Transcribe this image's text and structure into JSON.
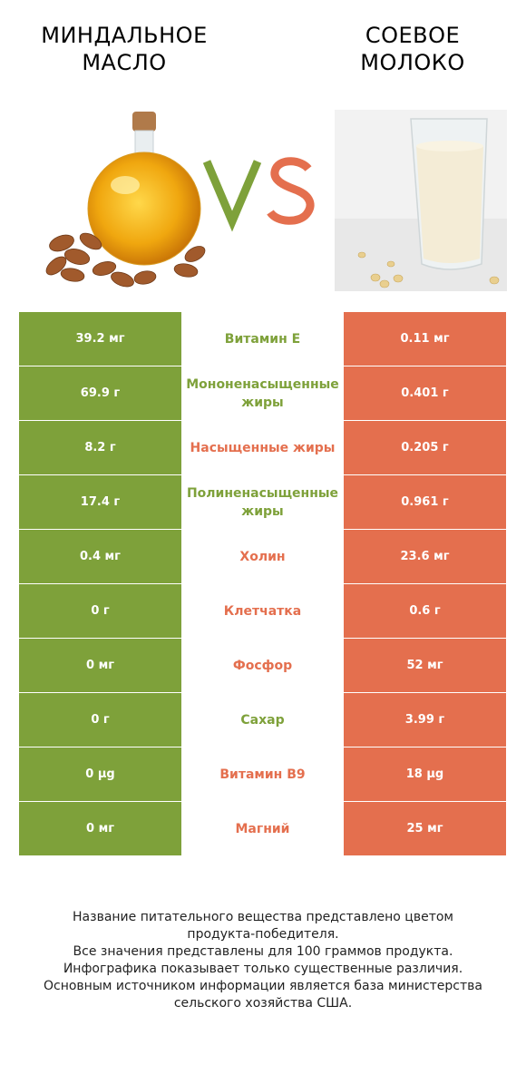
{
  "header": {
    "left_title_line1": "МИНДАЛЬНОЕ",
    "left_title_line2": "МАСЛО",
    "right_title_line1": "СОЕВОЕ",
    "right_title_line2": "МОЛОКО",
    "vs_v": "V",
    "vs_s": "S"
  },
  "colors": {
    "left_winner": "#7ea13a",
    "right_winner": "#e46f4e"
  },
  "rows": [
    {
      "left": "39.2 мг",
      "name": "Витамин E",
      "right": "0.11 мг",
      "winner": "left"
    },
    {
      "left": "69.9 г",
      "name": "Мононенасыщенные жиры",
      "right": "0.401 г",
      "winner": "left"
    },
    {
      "left": "8.2 г",
      "name": "Насыщенные жиры",
      "right": "0.205 г",
      "winner": "right"
    },
    {
      "left": "17.4 г",
      "name": "Полиненасыщенные жиры",
      "right": "0.961 г",
      "winner": "left"
    },
    {
      "left": "0.4 мг",
      "name": "Холин",
      "right": "23.6 мг",
      "winner": "right"
    },
    {
      "left": "0 г",
      "name": "Клетчатка",
      "right": "0.6 г",
      "winner": "right"
    },
    {
      "left": "0 мг",
      "name": "Фосфор",
      "right": "52 мг",
      "winner": "right"
    },
    {
      "left": "0 г",
      "name": "Сахар",
      "right": "3.99 г",
      "winner": "left"
    },
    {
      "left": "0 µg",
      "name": "Витамин B9",
      "right": "18 µg",
      "winner": "right"
    },
    {
      "left": "0 мг",
      "name": "Магний",
      "right": "25 мг",
      "winner": "right"
    }
  ],
  "footer": {
    "line1": "Название питательного вещества представлено цветом",
    "line2": "продукта-победителя.",
    "line3": "Все значения представлены для 100 граммов продукта.",
    "line4": "Инфографика показывает только существенные различия.",
    "line5": "Основным источником информации является база министерства",
    "line6": "сельского хозяйства США."
  }
}
